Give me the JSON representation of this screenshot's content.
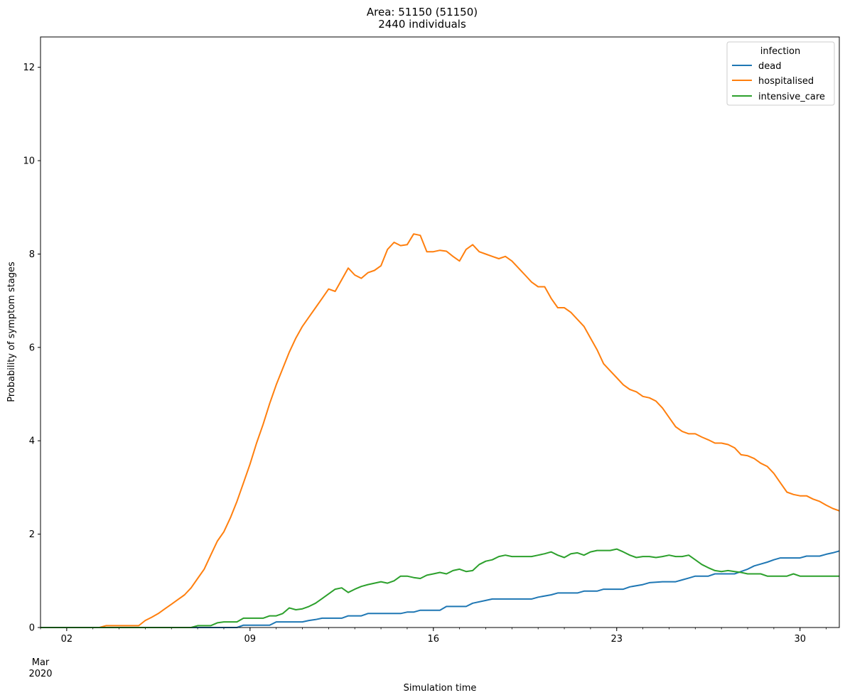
{
  "chart_data": {
    "type": "line",
    "title": "Area: 51150 (51150)",
    "subtitle": "2440 individuals",
    "xlabel": "Simulation time",
    "ylabel": "Probability of symptom stages",
    "ylim": [
      0,
      12.65
    ],
    "xlim": [
      "2020-03-01",
      "2020-03-31T12:00"
    ],
    "x_major_ticks": [
      {
        "date": "2020-03-02",
        "label": "02"
      },
      {
        "date": "2020-03-09",
        "label": "09"
      },
      {
        "date": "2020-03-16",
        "label": "16"
      },
      {
        "date": "2020-03-23",
        "label": "23"
      },
      {
        "date": "2020-03-30",
        "label": "30"
      }
    ],
    "x_secondary_label": {
      "date": "2020-03-01",
      "month": "Mar",
      "year": "2020"
    },
    "y_ticks": [
      0,
      2,
      4,
      6,
      8,
      10,
      12
    ],
    "grid": false,
    "legend": {
      "title": "infection",
      "position": "top-right"
    },
    "series": [
      {
        "name": "dead",
        "color": "#1f77b4",
        "points": [
          [
            "2020-03-01",
            0
          ],
          [
            "2020-03-08T12:00",
            0
          ],
          [
            "2020-03-08T18:00",
            0.05
          ],
          [
            "2020-03-09T18:00",
            0.05
          ],
          [
            "2020-03-10",
            0.12
          ],
          [
            "2020-03-11",
            0.12
          ],
          [
            "2020-03-11T06:00",
            0.15
          ],
          [
            "2020-03-11T12:00",
            0.17
          ],
          [
            "2020-03-11T18:00",
            0.2
          ],
          [
            "2020-03-12T12:00",
            0.2
          ],
          [
            "2020-03-12T18:00",
            0.25
          ],
          [
            "2020-03-13T06:00",
            0.25
          ],
          [
            "2020-03-13T12:00",
            0.3
          ],
          [
            "2020-03-14T18:00",
            0.3
          ],
          [
            "2020-03-15",
            0.33
          ],
          [
            "2020-03-15T06:00",
            0.33
          ],
          [
            "2020-03-15T12:00",
            0.37
          ],
          [
            "2020-03-16T06:00",
            0.37
          ],
          [
            "2020-03-16T12:00",
            0.45
          ],
          [
            "2020-03-17T06:00",
            0.45
          ],
          [
            "2020-03-17T12:00",
            0.52
          ],
          [
            "2020-03-18",
            0.58
          ],
          [
            "2020-03-18T06:00",
            0.61
          ],
          [
            "2020-03-19T18:00",
            0.61
          ],
          [
            "2020-03-20",
            0.65
          ],
          [
            "2020-03-20T12:00",
            0.7
          ],
          [
            "2020-03-20T18:00",
            0.74
          ],
          [
            "2020-03-21T12:00",
            0.74
          ],
          [
            "2020-03-21T18:00",
            0.78
          ],
          [
            "2020-03-22T06:00",
            0.78
          ],
          [
            "2020-03-22T12:00",
            0.82
          ],
          [
            "2020-03-23T06:00",
            0.82
          ],
          [
            "2020-03-23T12:00",
            0.87
          ],
          [
            "2020-03-24",
            0.92
          ],
          [
            "2020-03-24T06:00",
            0.96
          ],
          [
            "2020-03-24T18:00",
            0.98
          ],
          [
            "2020-03-25T06:00",
            0.98
          ],
          [
            "2020-03-25T12:00",
            1.02
          ],
          [
            "2020-03-25T18:00",
            1.06
          ],
          [
            "2020-03-26",
            1.1
          ],
          [
            "2020-03-26T12:00",
            1.1
          ],
          [
            "2020-03-26T18:00",
            1.15
          ],
          [
            "2020-03-27T12:00",
            1.15
          ],
          [
            "2020-03-27T18:00",
            1.2
          ],
          [
            "2020-03-28",
            1.25
          ],
          [
            "2020-03-28T06:00",
            1.32
          ],
          [
            "2020-03-28T12:00",
            1.36
          ],
          [
            "2020-03-28T18:00",
            1.4
          ],
          [
            "2020-03-29",
            1.45
          ],
          [
            "2020-03-29T06:00",
            1.49
          ],
          [
            "2020-03-30",
            1.49
          ],
          [
            "2020-03-30T06:00",
            1.53
          ],
          [
            "2020-03-30T18:00",
            1.53
          ],
          [
            "2020-03-31",
            1.57
          ],
          [
            "2020-03-31T06:00",
            1.6
          ],
          [
            "2020-03-31T12:00",
            1.64
          ]
        ]
      },
      {
        "name": "hospitalised",
        "color": "#ff7f0e",
        "points": [
          [
            "2020-03-01",
            0
          ],
          [
            "2020-03-03T06:00",
            0
          ],
          [
            "2020-03-03T12:00",
            0.04
          ],
          [
            "2020-03-04T18:00",
            0.04
          ],
          [
            "2020-03-05",
            0.15
          ],
          [
            "2020-03-05T06:00",
            0.22
          ],
          [
            "2020-03-05T12:00",
            0.3
          ],
          [
            "2020-03-05T18:00",
            0.4
          ],
          [
            "2020-03-06",
            0.5
          ],
          [
            "2020-03-06T06:00",
            0.6
          ],
          [
            "2020-03-06T12:00",
            0.7
          ],
          [
            "2020-03-06T18:00",
            0.85
          ],
          [
            "2020-03-07",
            1.05
          ],
          [
            "2020-03-07T06:00",
            1.25
          ],
          [
            "2020-03-07T12:00",
            1.55
          ],
          [
            "2020-03-07T18:00",
            1.85
          ],
          [
            "2020-03-08",
            2.05
          ],
          [
            "2020-03-08T06:00",
            2.35
          ],
          [
            "2020-03-08T12:00",
            2.7
          ],
          [
            "2020-03-08T18:00",
            3.1
          ],
          [
            "2020-03-09",
            3.5
          ],
          [
            "2020-03-09T06:00",
            3.95
          ],
          [
            "2020-03-09T12:00",
            4.35
          ],
          [
            "2020-03-09T18:00",
            4.8
          ],
          [
            "2020-03-10",
            5.2
          ],
          [
            "2020-03-10T06:00",
            5.55
          ],
          [
            "2020-03-10T12:00",
            5.9
          ],
          [
            "2020-03-10T18:00",
            6.2
          ],
          [
            "2020-03-11",
            6.45
          ],
          [
            "2020-03-11T06:00",
            6.65
          ],
          [
            "2020-03-11T12:00",
            6.85
          ],
          [
            "2020-03-11T18:00",
            7.05
          ],
          [
            "2020-03-12",
            7.25
          ],
          [
            "2020-03-12T06:00",
            7.2
          ],
          [
            "2020-03-12T12:00",
            7.45
          ],
          [
            "2020-03-12T18:00",
            7.7
          ],
          [
            "2020-03-13",
            7.55
          ],
          [
            "2020-03-13T06:00",
            7.48
          ],
          [
            "2020-03-13T12:00",
            7.6
          ],
          [
            "2020-03-13T18:00",
            7.65
          ],
          [
            "2020-03-14",
            7.75
          ],
          [
            "2020-03-14T06:00",
            8.1
          ],
          [
            "2020-03-14T12:00",
            8.25
          ],
          [
            "2020-03-14T18:00",
            8.18
          ],
          [
            "2020-03-15",
            8.2
          ],
          [
            "2020-03-15T06:00",
            8.43
          ],
          [
            "2020-03-15T12:00",
            8.4
          ],
          [
            "2020-03-15T18:00",
            8.05
          ],
          [
            "2020-03-16",
            8.05
          ],
          [
            "2020-03-16T06:00",
            8.08
          ],
          [
            "2020-03-16T12:00",
            8.06
          ],
          [
            "2020-03-16T18:00",
            7.95
          ],
          [
            "2020-03-17",
            7.85
          ],
          [
            "2020-03-17T06:00",
            8.1
          ],
          [
            "2020-03-17T12:00",
            8.2
          ],
          [
            "2020-03-17T18:00",
            8.05
          ],
          [
            "2020-03-18",
            8.0
          ],
          [
            "2020-03-18T06:00",
            7.95
          ],
          [
            "2020-03-18T12:00",
            7.9
          ],
          [
            "2020-03-18T18:00",
            7.95
          ],
          [
            "2020-03-19",
            7.85
          ],
          [
            "2020-03-19T06:00",
            7.7
          ],
          [
            "2020-03-19T12:00",
            7.55
          ],
          [
            "2020-03-19T18:00",
            7.4
          ],
          [
            "2020-03-20",
            7.3
          ],
          [
            "2020-03-20T06:00",
            7.3
          ],
          [
            "2020-03-20T12:00",
            7.05
          ],
          [
            "2020-03-20T18:00",
            6.85
          ],
          [
            "2020-03-21",
            6.85
          ],
          [
            "2020-03-21T06:00",
            6.75
          ],
          [
            "2020-03-21T12:00",
            6.6
          ],
          [
            "2020-03-21T18:00",
            6.45
          ],
          [
            "2020-03-22",
            6.2
          ],
          [
            "2020-03-22T06:00",
            5.95
          ],
          [
            "2020-03-22T12:00",
            5.65
          ],
          [
            "2020-03-22T18:00",
            5.5
          ],
          [
            "2020-03-23",
            5.35
          ],
          [
            "2020-03-23T06:00",
            5.2
          ],
          [
            "2020-03-23T12:00",
            5.1
          ],
          [
            "2020-03-23T18:00",
            5.05
          ],
          [
            "2020-03-24",
            4.95
          ],
          [
            "2020-03-24T06:00",
            4.92
          ],
          [
            "2020-03-24T12:00",
            4.85
          ],
          [
            "2020-03-24T18:00",
            4.7
          ],
          [
            "2020-03-25",
            4.5
          ],
          [
            "2020-03-25T06:00",
            4.3
          ],
          [
            "2020-03-25T12:00",
            4.2
          ],
          [
            "2020-03-25T18:00",
            4.15
          ],
          [
            "2020-03-26",
            4.15
          ],
          [
            "2020-03-26T06:00",
            4.08
          ],
          [
            "2020-03-26T12:00",
            4.02
          ],
          [
            "2020-03-26T18:00",
            3.95
          ],
          [
            "2020-03-27",
            3.95
          ],
          [
            "2020-03-27T06:00",
            3.92
          ],
          [
            "2020-03-27T12:00",
            3.85
          ],
          [
            "2020-03-27T18:00",
            3.7
          ],
          [
            "2020-03-28",
            3.68
          ],
          [
            "2020-03-28T06:00",
            3.62
          ],
          [
            "2020-03-28T12:00",
            3.52
          ],
          [
            "2020-03-28T18:00",
            3.45
          ],
          [
            "2020-03-29",
            3.3
          ],
          [
            "2020-03-29T06:00",
            3.1
          ],
          [
            "2020-03-29T12:00",
            2.9
          ],
          [
            "2020-03-29T18:00",
            2.85
          ],
          [
            "2020-03-30",
            2.82
          ],
          [
            "2020-03-30T06:00",
            2.82
          ],
          [
            "2020-03-30T12:00",
            2.75
          ],
          [
            "2020-03-30T18:00",
            2.7
          ],
          [
            "2020-03-31",
            2.62
          ],
          [
            "2020-03-31T06:00",
            2.55
          ],
          [
            "2020-03-31T12:00",
            2.5
          ]
        ]
      },
      {
        "name": "intensive_care",
        "color": "#2ca02c",
        "points": [
          [
            "2020-03-01",
            0
          ],
          [
            "2020-03-06T18:00",
            0
          ],
          [
            "2020-03-07",
            0.04
          ],
          [
            "2020-03-07T12:00",
            0.04
          ],
          [
            "2020-03-07T18:00",
            0.1
          ],
          [
            "2020-03-08",
            0.12
          ],
          [
            "2020-03-08T12:00",
            0.12
          ],
          [
            "2020-03-08T18:00",
            0.2
          ],
          [
            "2020-03-09T12:00",
            0.2
          ],
          [
            "2020-03-09T18:00",
            0.25
          ],
          [
            "2020-03-10",
            0.25
          ],
          [
            "2020-03-10T06:00",
            0.3
          ],
          [
            "2020-03-10T12:00",
            0.42
          ],
          [
            "2020-03-10T18:00",
            0.38
          ],
          [
            "2020-03-11",
            0.4
          ],
          [
            "2020-03-11T06:00",
            0.45
          ],
          [
            "2020-03-11T12:00",
            0.52
          ],
          [
            "2020-03-11T18:00",
            0.62
          ],
          [
            "2020-03-12",
            0.72
          ],
          [
            "2020-03-12T06:00",
            0.82
          ],
          [
            "2020-03-12T12:00",
            0.85
          ],
          [
            "2020-03-12T18:00",
            0.75
          ],
          [
            "2020-03-13",
            0.82
          ],
          [
            "2020-03-13T06:00",
            0.88
          ],
          [
            "2020-03-13T12:00",
            0.92
          ],
          [
            "2020-03-13T18:00",
            0.95
          ],
          [
            "2020-03-14",
            0.98
          ],
          [
            "2020-03-14T06:00",
            0.95
          ],
          [
            "2020-03-14T12:00",
            1.0
          ],
          [
            "2020-03-14T18:00",
            1.1
          ],
          [
            "2020-03-15",
            1.1
          ],
          [
            "2020-03-15T06:00",
            1.07
          ],
          [
            "2020-03-15T12:00",
            1.05
          ],
          [
            "2020-03-15T18:00",
            1.12
          ],
          [
            "2020-03-16",
            1.15
          ],
          [
            "2020-03-16T06:00",
            1.18
          ],
          [
            "2020-03-16T12:00",
            1.15
          ],
          [
            "2020-03-16T18:00",
            1.22
          ],
          [
            "2020-03-17",
            1.25
          ],
          [
            "2020-03-17T06:00",
            1.2
          ],
          [
            "2020-03-17T12:00",
            1.22
          ],
          [
            "2020-03-17T18:00",
            1.35
          ],
          [
            "2020-03-18",
            1.42
          ],
          [
            "2020-03-18T06:00",
            1.45
          ],
          [
            "2020-03-18T12:00",
            1.52
          ],
          [
            "2020-03-18T18:00",
            1.55
          ],
          [
            "2020-03-19",
            1.52
          ],
          [
            "2020-03-19T12:00",
            1.52
          ],
          [
            "2020-03-19T18:00",
            1.52
          ],
          [
            "2020-03-20",
            1.55
          ],
          [
            "2020-03-20T06:00",
            1.58
          ],
          [
            "2020-03-20T12:00",
            1.62
          ],
          [
            "2020-03-20T18:00",
            1.55
          ],
          [
            "2020-03-21",
            1.5
          ],
          [
            "2020-03-21T06:00",
            1.58
          ],
          [
            "2020-03-21T12:00",
            1.6
          ],
          [
            "2020-03-21T18:00",
            1.55
          ],
          [
            "2020-03-22",
            1.62
          ],
          [
            "2020-03-22T06:00",
            1.65
          ],
          [
            "2020-03-22T12:00",
            1.65
          ],
          [
            "2020-03-22T18:00",
            1.65
          ],
          [
            "2020-03-23",
            1.68
          ],
          [
            "2020-03-23T06:00",
            1.62
          ],
          [
            "2020-03-23T12:00",
            1.55
          ],
          [
            "2020-03-23T18:00",
            1.5
          ],
          [
            "2020-03-24",
            1.52
          ],
          [
            "2020-03-24T06:00",
            1.52
          ],
          [
            "2020-03-24T12:00",
            1.5
          ],
          [
            "2020-03-24T18:00",
            1.52
          ],
          [
            "2020-03-25",
            1.55
          ],
          [
            "2020-03-25T06:00",
            1.52
          ],
          [
            "2020-03-25T12:00",
            1.52
          ],
          [
            "2020-03-25T18:00",
            1.55
          ],
          [
            "2020-03-26",
            1.45
          ],
          [
            "2020-03-26T06:00",
            1.35
          ],
          [
            "2020-03-26T12:00",
            1.28
          ],
          [
            "2020-03-26T18:00",
            1.22
          ],
          [
            "2020-03-27",
            1.2
          ],
          [
            "2020-03-27T06:00",
            1.22
          ],
          [
            "2020-03-27T12:00",
            1.2
          ],
          [
            "2020-03-27T18:00",
            1.18
          ],
          [
            "2020-03-28",
            1.15
          ],
          [
            "2020-03-28T12:00",
            1.15
          ],
          [
            "2020-03-28T18:00",
            1.1
          ],
          [
            "2020-03-29T12:00",
            1.1
          ],
          [
            "2020-03-29T18:00",
            1.15
          ],
          [
            "2020-03-30",
            1.1
          ],
          [
            "2020-03-31T12:00",
            1.1
          ]
        ]
      }
    ]
  }
}
